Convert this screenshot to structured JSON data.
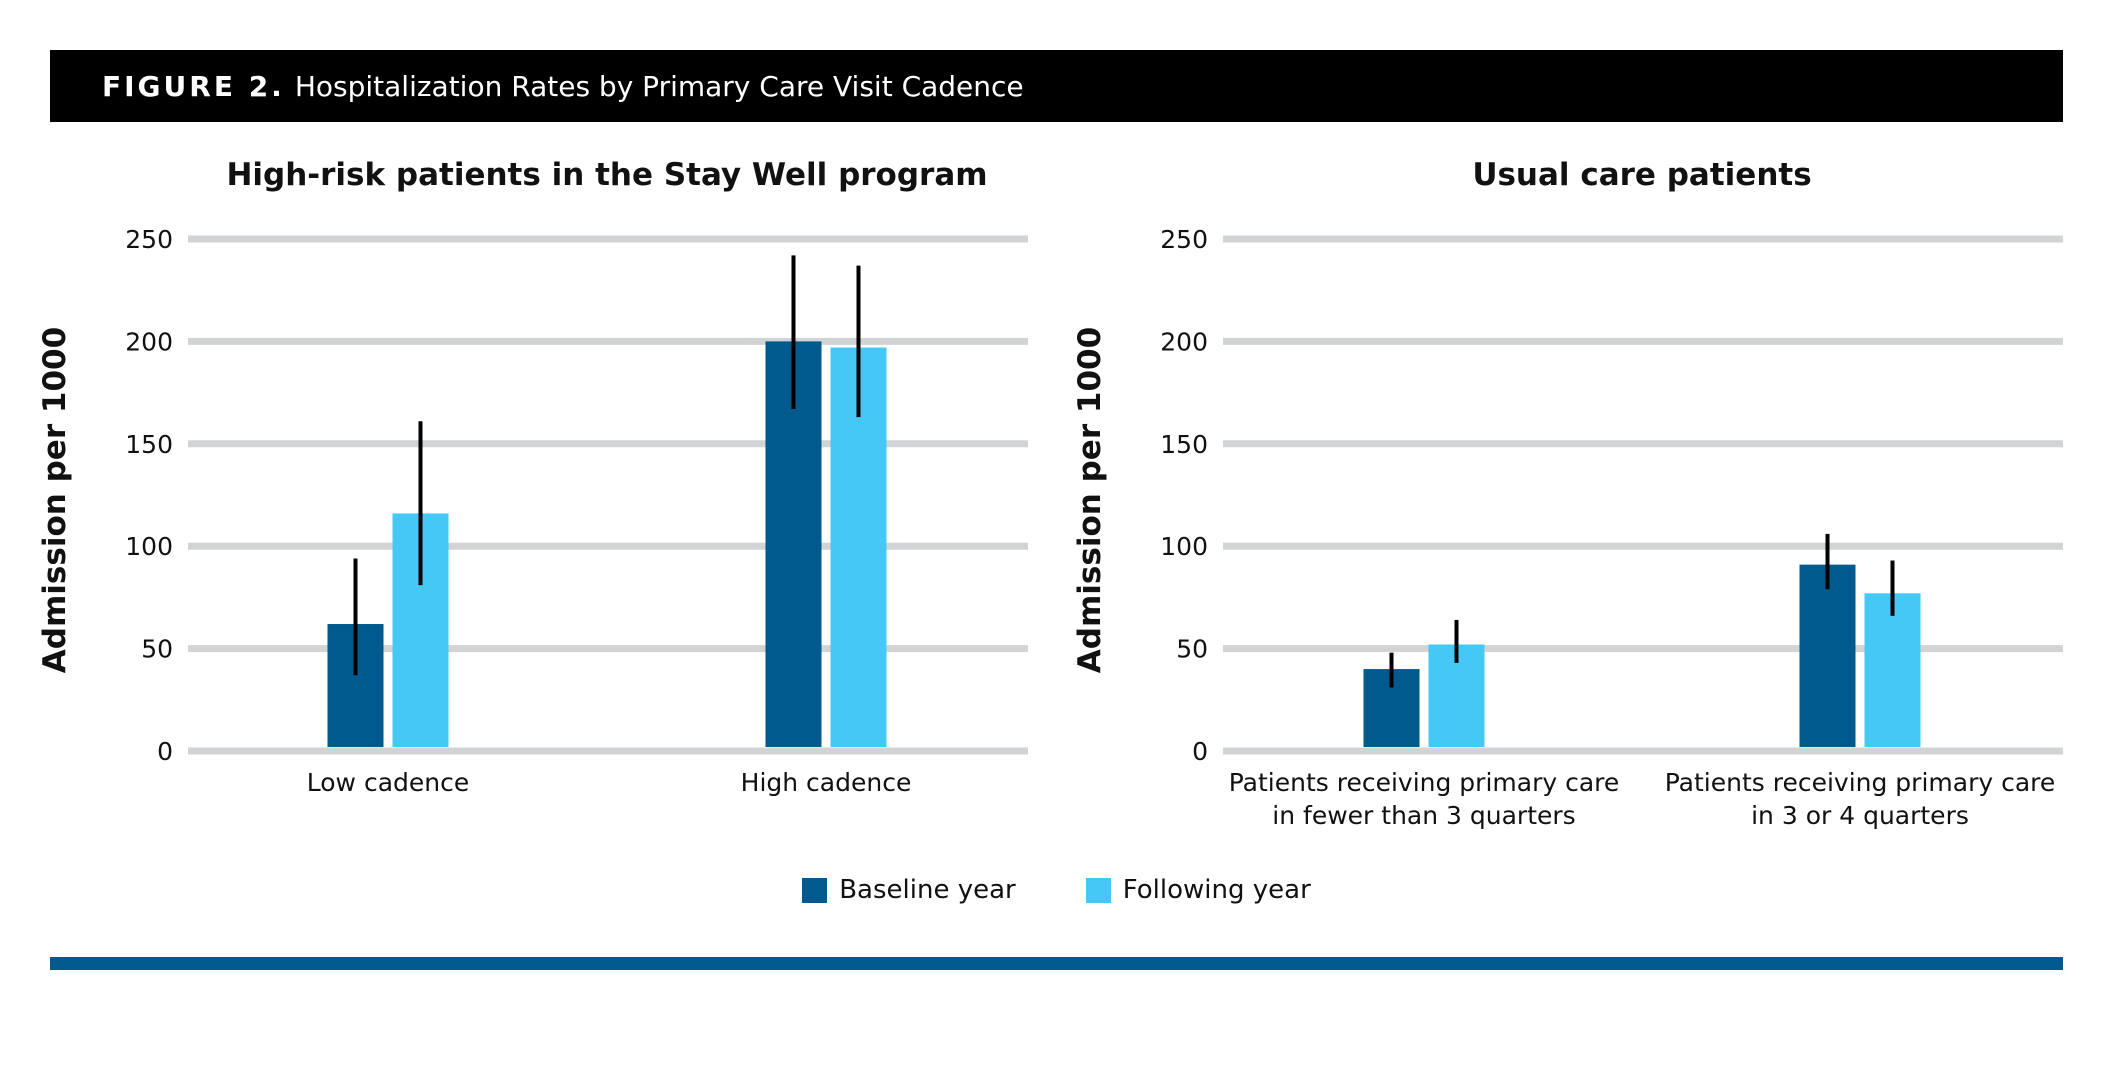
{
  "header": {
    "figure_label": "FIGURE 2.",
    "title": "Hospitalization Rates by Primary Care Visit Cadence"
  },
  "colors": {
    "baseline": "#005A8E",
    "following": "#45C8F5",
    "grid": "#D1D3D4",
    "error_bar": "#000000",
    "rule": "#005A8E"
  },
  "legend": {
    "baseline_label": "Baseline year",
    "following_label": "Following year"
  },
  "chart_data": [
    {
      "type": "bar",
      "title": "High-risk patients in the Stay Well program",
      "ylabel": "Admission per 1000",
      "xlabel": "",
      "ylim": [
        0,
        250
      ],
      "yticks": [
        0,
        50,
        100,
        150,
        200,
        250
      ],
      "grid": true,
      "categories": [
        [
          "Low cadence"
        ],
        [
          "High cadence"
        ]
      ],
      "series": [
        {
          "name": "Baseline year",
          "values": [
            62,
            200
          ],
          "error_low": [
            37,
            167
          ],
          "error_high": [
            94,
            242
          ]
        },
        {
          "name": "Following year",
          "values": [
            116,
            197
          ],
          "error_low": [
            81,
            163
          ],
          "error_high": [
            161,
            237
          ]
        }
      ]
    },
    {
      "type": "bar",
      "title": "Usual care patients",
      "ylabel": "Admission per 1000",
      "xlabel": "",
      "ylim": [
        0,
        250
      ],
      "yticks": [
        0,
        50,
        100,
        150,
        200,
        250
      ],
      "grid": true,
      "categories": [
        [
          "Patients receiving primary care",
          "in fewer than 3 quarters"
        ],
        [
          "Patients receiving primary care",
          "in 3 or 4 quarters"
        ]
      ],
      "series": [
        {
          "name": "Baseline year",
          "values": [
            40,
            91
          ],
          "error_low": [
            31,
            79
          ],
          "error_high": [
            48,
            106
          ]
        },
        {
          "name": "Following year",
          "values": [
            52,
            77
          ],
          "error_low": [
            43,
            66
          ],
          "error_high": [
            64,
            93
          ]
        }
      ]
    }
  ]
}
